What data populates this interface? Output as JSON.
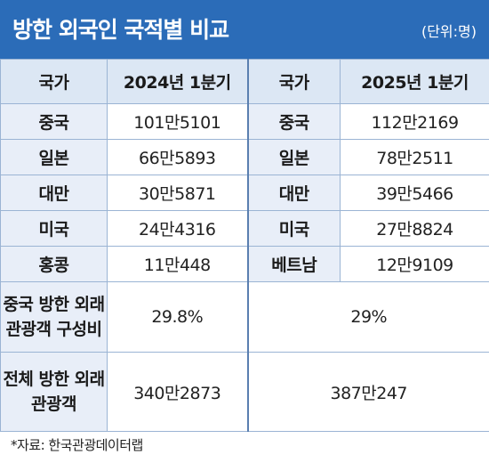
{
  "header": {
    "title": "방한 외국인 국적별 비교",
    "unit": "(단위:명)"
  },
  "table": {
    "headers": [
      "국가",
      "2024년 1분기",
      "국가",
      "2025년 1분기"
    ],
    "rows": [
      [
        "중국",
        "101만5101",
        "중국",
        "112만2169"
      ],
      [
        "일본",
        "66만5893",
        "일본",
        "78만2511"
      ],
      [
        "대만",
        "30만5871",
        "대만",
        "39만5466"
      ],
      [
        "미국",
        "24만4316",
        "미국",
        "27만8824"
      ],
      [
        "홍콩",
        "11만448",
        "베트남",
        "12만9109"
      ]
    ],
    "share_label_1": "중국 방한 외래",
    "share_label_2": "관광객 구성비",
    "share_2024": "29.8%",
    "share_2025": "29%",
    "total_label_1": "전체 방한 외래",
    "total_label_2": "관광객",
    "total_2024": "340만2873",
    "total_2025": "387만247"
  },
  "source": "*자료: 한국관광데이터랩",
  "colors": {
    "title_bg": "#2b6cb8",
    "header_bg": "#dce7f4",
    "label_bg": "#e8eef8",
    "border": "#9bb4d4"
  }
}
